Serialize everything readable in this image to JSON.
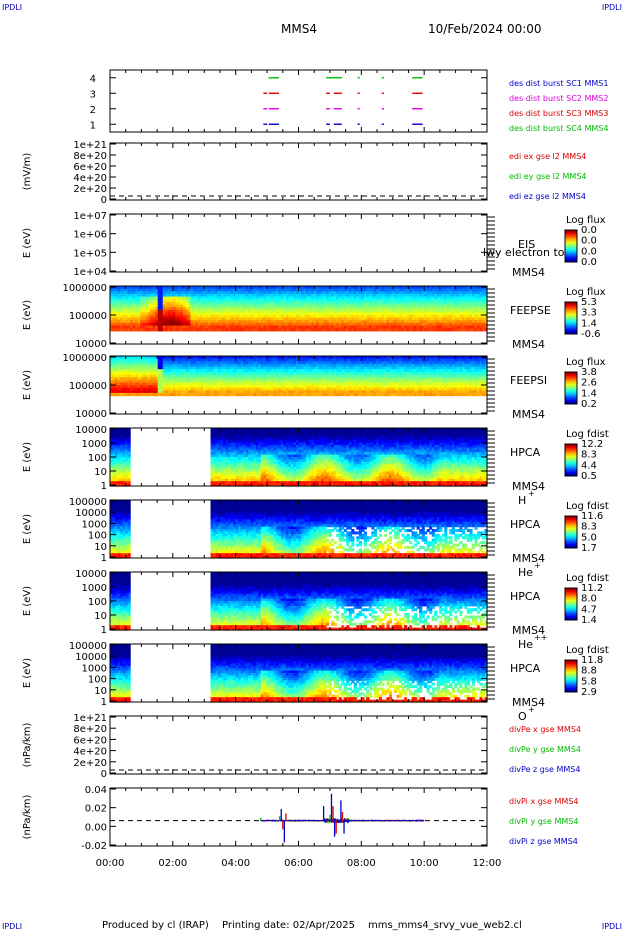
{
  "corners": {
    "tl": "IPDLI",
    "tr": "IPDLI",
    "bl": "IPDLI",
    "br": "IPDLI"
  },
  "header": {
    "spacecraft": "MMS4",
    "datetime": "10/Feb/2024 00:00"
  },
  "footer": {
    "producer": "Produced by cl (IRAP)",
    "printing": "Printing date: 02/Apr/2025",
    "file": "mms_mms4_srvy_vue_web2.cl"
  },
  "colors": {
    "blue": "#0000cc",
    "magenta": "#e000e0",
    "red": "#dd0000",
    "green": "#00bb00"
  },
  "chart_data": [
    {
      "type": "scatter",
      "id": "burst",
      "ticks": [
        "1",
        "2",
        "3",
        "4"
      ],
      "ylim": [
        0.5,
        4.5
      ],
      "legend": [
        "des dist burst SC1 MMS1",
        "des dist burst SC2 MMS2",
        "des dist burst SC3 MMS3",
        "des dist burst SC4 MMS4"
      ],
      "series": [
        {
          "name": "des dist burst SC1 MMS1",
          "level": 1,
          "color": "blue",
          "segments": [
            [
              4.88,
              5.0
            ],
            [
              5.05,
              5.38
            ],
            [
              6.88,
              7.0
            ],
            [
              7.12,
              7.38
            ],
            [
              7.88,
              7.95
            ],
            [
              8.65,
              8.72
            ],
            [
              9.62,
              9.95
            ]
          ]
        },
        {
          "name": "des dist burst SC2 MMS2",
          "level": 2,
          "color": "magenta",
          "segments": [
            [
              4.88,
              5.0
            ],
            [
              5.05,
              5.38
            ],
            [
              6.88,
              7.0
            ],
            [
              7.12,
              7.38
            ],
            [
              7.88,
              7.95
            ],
            [
              8.65,
              8.72
            ],
            [
              9.62,
              9.95
            ]
          ]
        },
        {
          "name": "des dist burst SC3 MMS3",
          "level": 3,
          "color": "red",
          "segments": [
            [
              4.88,
              5.0
            ],
            [
              5.05,
              5.38
            ],
            [
              6.88,
              7.0
            ],
            [
              7.12,
              7.38
            ],
            [
              7.88,
              7.95
            ],
            [
              8.65,
              8.72
            ],
            [
              9.62,
              9.95
            ]
          ]
        },
        {
          "name": "des dist burst SC4 MMS4",
          "level": 4,
          "color": "green",
          "segments": [
            [
              5.05,
              5.38
            ],
            [
              6.88,
              7.38
            ],
            [
              7.88,
              7.95
            ],
            [
              8.65,
              8.72
            ],
            [
              9.62,
              9.95
            ]
          ]
        }
      ]
    },
    {
      "type": "line",
      "id": "edi",
      "ylabel": "(mV/m)",
      "ticks": [
        "0",
        "2e+20",
        "4e+20",
        "6e+20",
        "8e+20",
        "1e+21"
      ],
      "ylim": [
        0,
        1.1e+21
      ],
      "legend": [
        "edi ex gse l2 MMS4",
        "edi ey gse l2 MMS4",
        "edi ez gse l2 MMS4"
      ],
      "series": []
    },
    {
      "type": "heatmap",
      "id": "eis",
      "ylabel": "E (eV)",
      "ticks": [
        "1e+04",
        "1e+05",
        "1e+06",
        "1e+07"
      ],
      "scale": "log",
      "label": "EIS",
      "sub": "MMS4",
      "overlay": "lwy electron to",
      "cbar": {
        "title": "Log flux",
        "ticks": [
          "0.0",
          "0.0",
          "0.0",
          "0.0"
        ]
      }
    },
    {
      "type": "heatmap",
      "id": "feepse",
      "ylabel": "E (eV)",
      "ticks": [
        "10000",
        "100000",
        "1000000"
      ],
      "scale": "log",
      "label": "FEEPSE",
      "sub": "MMS4",
      "cbar": {
        "title": "Log flux",
        "ticks": [
          "5.3",
          "3.3",
          "1.4",
          "-0.6"
        ]
      }
    },
    {
      "type": "heatmap",
      "id": "feepsi",
      "ylabel": "E (eV)",
      "ticks": [
        "10000",
        "100000",
        "1000000"
      ],
      "scale": "log",
      "label": "FEEPSI",
      "sub": "MMS4",
      "cbar": {
        "title": "Log flux",
        "ticks": [
          "3.8",
          "2.6",
          "1.4",
          "0.2"
        ]
      }
    },
    {
      "type": "heatmap",
      "id": "hpca_h",
      "ylabel": "E (eV)",
      "ticks": [
        "1",
        "10",
        "100",
        "1000",
        "10000"
      ],
      "scale": "log",
      "label": "HPCA",
      "sub": "MMS4",
      "species": "H",
      "charge": "+",
      "gap": [
        0.6,
        3.15
      ],
      "cbar": {
        "title": "Log fdist",
        "ticks": [
          "12.2",
          "8.3",
          "4.4",
          "0.5"
        ]
      }
    },
    {
      "type": "heatmap",
      "id": "hpca_he",
      "ylabel": "E (eV)",
      "ticks": [
        "1",
        "10",
        "100",
        "1000",
        "10000",
        "100000"
      ],
      "scale": "log",
      "label": "HPCA",
      "sub": "MMS4",
      "species": "He",
      "charge": "+",
      "gap": [
        0.6,
        3.15
      ],
      "cbar": {
        "title": "Log fdist",
        "ticks": [
          "11.6",
          "8.3",
          "5.0",
          "1.7"
        ]
      }
    },
    {
      "type": "heatmap",
      "id": "hpca_hepp",
      "ylabel": "E (eV)",
      "ticks": [
        "1",
        "10",
        "100",
        "1000",
        "10000"
      ],
      "scale": "log",
      "label": "HPCA",
      "sub": "MMS4",
      "species": "He",
      "charge": "++",
      "gap": [
        0.6,
        3.15
      ],
      "cbar": {
        "title": "Log fdist",
        "ticks": [
          "11.2",
          "8.0",
          "4.7",
          "1.4"
        ]
      }
    },
    {
      "type": "heatmap",
      "id": "hpca_o",
      "ylabel": "E (eV)",
      "ticks": [
        "1",
        "10",
        "100",
        "1000",
        "10000",
        "100000"
      ],
      "scale": "log",
      "label": "HPCA",
      "sub": "MMS4",
      "species": "O",
      "charge": "+",
      "gap": [
        0.6,
        3.15
      ],
      "cbar": {
        "title": "Log fdist",
        "ticks": [
          "11.8",
          "8.8",
          "5.8",
          "2.9"
        ]
      }
    },
    {
      "type": "line",
      "id": "divpe",
      "ylabel": "(nPa/km)",
      "ticks": [
        "0",
        "2e+20",
        "4e+20",
        "6e+20",
        "8e+20",
        "1e+21"
      ],
      "ylim": [
        0,
        1.1e+21
      ],
      "legend": [
        "divPe x gse MMS4",
        "divPe y gse MMS4",
        "divPe z gse MMS4"
      ],
      "series": []
    },
    {
      "type": "line",
      "id": "divpi",
      "ylabel": "(nPa/km)",
      "ticks": [
        "-0.02",
        "0.00",
        "0.02",
        "0.04"
      ],
      "ylim": [
        -0.035,
        0.045
      ],
      "legend": [
        "divPi x gse MMS4",
        "divPi y gse MMS4",
        "divPi z gse MMS4"
      ],
      "series": [
        {
          "name": "divPi x gse MMS4",
          "color": "red",
          "spikes": [
            [
              5.5,
              -0.012
            ],
            [
              5.6,
              0.01
            ],
            [
              7.1,
              0.02
            ],
            [
              7.2,
              -0.018
            ],
            [
              7.4,
              0.012
            ]
          ]
        },
        {
          "name": "divPi y gse MMS4",
          "color": "green",
          "spikes": [
            [
              4.8,
              0.004
            ],
            [
              5.4,
              0.006
            ],
            [
              7.0,
              0.008
            ]
          ]
        },
        {
          "name": "divPi z gse MMS4",
          "color": "blue",
          "spikes": [
            [
              5.45,
              0.016
            ],
            [
              5.55,
              -0.03
            ],
            [
              6.8,
              0.02
            ],
            [
              7.05,
              0.037
            ],
            [
              7.15,
              -0.022
            ],
            [
              7.35,
              0.028
            ],
            [
              7.45,
              -0.018
            ]
          ]
        }
      ]
    }
  ],
  "xaxis": {
    "range": [
      0,
      12
    ],
    "ticks": [
      "00:00",
      "02:00",
      "04:00",
      "06:00",
      "08:00",
      "10:00",
      "12:00"
    ]
  }
}
